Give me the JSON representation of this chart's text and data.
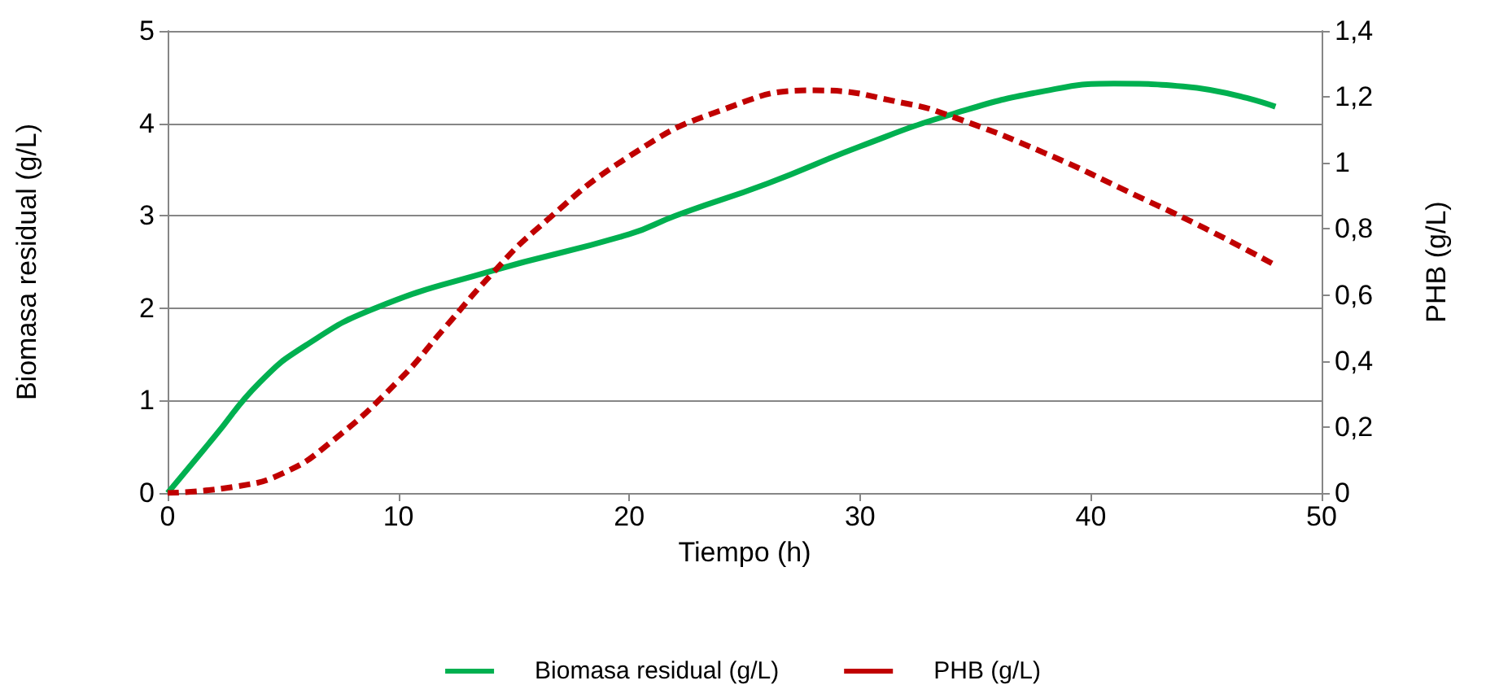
{
  "chart_data": {
    "type": "line",
    "xlabel": "Tiempo (h)",
    "ylabel": "Biomasa residual (g/L)",
    "y2label": "PHB (g/L)",
    "xlim": [
      0,
      50
    ],
    "xticks": [
      0,
      10,
      20,
      30,
      40,
      50
    ],
    "ylim": [
      0,
      5
    ],
    "yticks": [
      0,
      1,
      2,
      3,
      4,
      5
    ],
    "y2lim": [
      0,
      1.4
    ],
    "y2ticks": [
      0,
      {
        "value": 0.2,
        "label": "0,2"
      },
      {
        "value": 0.4,
        "label": "0,4"
      },
      {
        "value": 0.6,
        "label": "0,6"
      },
      {
        "value": 0.8,
        "label": "0,8"
      },
      1,
      {
        "value": 1.2,
        "label": "1,2"
      },
      {
        "value": 1.4,
        "label": "1,4"
      }
    ],
    "grid": "y",
    "legend": "bottom",
    "marker": "none",
    "series": [
      {
        "name": "Biomasa residual (g/L)",
        "color": "#00b050",
        "line_style": "solid",
        "x": [
          0,
          2,
          4,
          6,
          9,
          14,
          20,
          22,
          26,
          30,
          34,
          38,
          41,
          44,
          48
        ],
        "values": [
          0,
          0.6,
          1.2,
          1.6,
          2.0,
          2.4,
          2.8,
          3.0,
          3.35,
          3.75,
          4.1,
          4.35,
          4.43,
          4.4,
          4.18
        ]
      },
      {
        "name": "PHB (g/L)",
        "color": "#c00000",
        "line_style": "dashed",
        "axis": "y2",
        "x": [
          0,
          3,
          5,
          7,
          10,
          12,
          14,
          16,
          20,
          24,
          28,
          32,
          34,
          38,
          42,
          45,
          48
        ],
        "values": [
          0,
          0.02,
          0.06,
          0.15,
          0.34,
          0.5,
          0.66,
          0.8,
          1.02,
          1.16,
          1.22,
          1.18,
          1.14,
          1.03,
          0.9,
          0.8,
          0.69
        ]
      }
    ]
  }
}
